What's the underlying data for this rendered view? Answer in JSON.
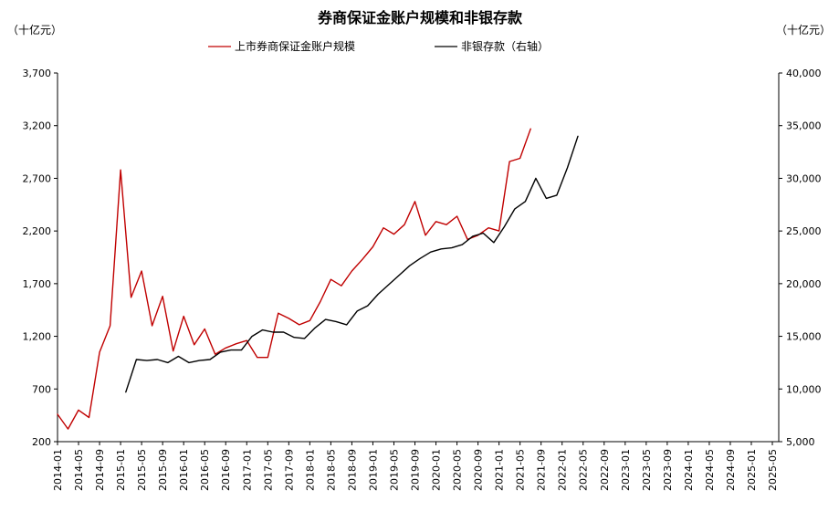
{
  "chart_data": {
    "type": "line",
    "title": "券商保证金账户规模和非银存款",
    "left_unit": "（十亿元）",
    "right_unit": "（十亿元）",
    "ylim_left": [
      200,
      3700
    ],
    "yticks_left": [
      "200",
      "700",
      "1,200",
      "1,700",
      "2,200",
      "2,700",
      "3,200",
      "3,700"
    ],
    "ylim_right": [
      5000,
      40000
    ],
    "yticks_right": [
      "5,000",
      "10,000",
      "15,000",
      "20,000",
      "25,000",
      "30,000",
      "35,000",
      "40,000"
    ],
    "x_labels": [
      "2014-01",
      "2014-05",
      "2014-09",
      "2015-01",
      "2015-05",
      "2015-09",
      "2016-01",
      "2016-05",
      "2016-09",
      "2017-01",
      "2017-05",
      "2017-09",
      "2018-01",
      "2018-05",
      "2018-09",
      "2019-01",
      "2019-05",
      "2019-09",
      "2020-01",
      "2020-05",
      "2020-09",
      "2021-01",
      "2021-05",
      "2021-09",
      "2022-01",
      "2022-05",
      "2022-09",
      "2023-01",
      "2023-05",
      "2023-09",
      "2024-01",
      "2024-05",
      "2024-09",
      "2025-01",
      "2025-05"
    ],
    "grid": false,
    "legend_position": "top-center",
    "series": [
      {
        "name": "上市券商保证金账户规模",
        "axis": "left",
        "color": "#c00000",
        "points": [
          {
            "x": "2014-01",
            "y": 460
          },
          {
            "x": "2014-03",
            "y": 320
          },
          {
            "x": "2014-05",
            "y": 500
          },
          {
            "x": "2014-07",
            "y": 430
          },
          {
            "x": "2014-09",
            "y": 1050
          },
          {
            "x": "2014-11",
            "y": 1300
          },
          {
            "x": "2015-01",
            "y": 2780
          },
          {
            "x": "2015-03",
            "y": 1570
          },
          {
            "x": "2015-05",
            "y": 1820
          },
          {
            "x": "2015-07",
            "y": 1300
          },
          {
            "x": "2015-09",
            "y": 1580
          },
          {
            "x": "2015-11",
            "y": 1060
          },
          {
            "x": "2016-01",
            "y": 1390
          },
          {
            "x": "2016-03",
            "y": 1120
          },
          {
            "x": "2016-05",
            "y": 1270
          },
          {
            "x": "2016-07",
            "y": 1030
          },
          {
            "x": "2016-09",
            "y": 1090
          },
          {
            "x": "2016-11",
            "y": 1130
          },
          {
            "x": "2017-01",
            "y": 1160
          },
          {
            "x": "2017-03",
            "y": 1000
          },
          {
            "x": "2017-05",
            "y": 1000
          },
          {
            "x": "2017-07",
            "y": 1420
          },
          {
            "x": "2017-09",
            "y": 1370
          },
          {
            "x": "2017-11",
            "y": 1310
          },
          {
            "x": "2018-01",
            "y": 1350
          },
          {
            "x": "2018-03",
            "y": 1530
          },
          {
            "x": "2018-05",
            "y": 1740
          },
          {
            "x": "2018-07",
            "y": 1680
          },
          {
            "x": "2018-09",
            "y": 1820
          },
          {
            "x": "2018-11",
            "y": 1930
          },
          {
            "x": "2019-01",
            "y": 2050
          },
          {
            "x": "2019-03",
            "y": 2230
          },
          {
            "x": "2019-05",
            "y": 2170
          },
          {
            "x": "2019-07",
            "y": 2260
          },
          {
            "x": "2019-09",
            "y": 2480
          },
          {
            "x": "2019-11",
            "y": 2160
          },
          {
            "x": "2020-01",
            "y": 2290
          },
          {
            "x": "2020-03",
            "y": 2260
          },
          {
            "x": "2020-05",
            "y": 2340
          },
          {
            "x": "2020-07",
            "y": 2120
          },
          {
            "x": "2020-09",
            "y": 2160
          },
          {
            "x": "2020-11",
            "y": 2230
          },
          {
            "x": "2021-01",
            "y": 2200
          },
          {
            "x": "2021-03",
            "y": 2860
          },
          {
            "x": "2021-05",
            "y": 2890
          },
          {
            "x": "2021-07",
            "y": 3170
          }
        ]
      },
      {
        "name": "非银存款（右轴）",
        "axis": "right",
        "color": "#000000",
        "points": [
          {
            "x": "2015-02",
            "y": 9700
          },
          {
            "x": "2015-04",
            "y": 12800
          },
          {
            "x": "2015-06",
            "y": 12700
          },
          {
            "x": "2015-08",
            "y": 12800
          },
          {
            "x": "2015-10",
            "y": 12500
          },
          {
            "x": "2015-12",
            "y": 13100
          },
          {
            "x": "2016-02",
            "y": 12500
          },
          {
            "x": "2016-04",
            "y": 12700
          },
          {
            "x": "2016-06",
            "y": 12800
          },
          {
            "x": "2016-08",
            "y": 13500
          },
          {
            "x": "2016-10",
            "y": 13700
          },
          {
            "x": "2016-12",
            "y": 13700
          },
          {
            "x": "2017-02",
            "y": 15000
          },
          {
            "x": "2017-04",
            "y": 15600
          },
          {
            "x": "2017-06",
            "y": 15400
          },
          {
            "x": "2017-08",
            "y": 15400
          },
          {
            "x": "2017-10",
            "y": 14900
          },
          {
            "x": "2017-12",
            "y": 14800
          },
          {
            "x": "2018-02",
            "y": 15800
          },
          {
            "x": "2018-04",
            "y": 16600
          },
          {
            "x": "2018-06",
            "y": 16400
          },
          {
            "x": "2018-08",
            "y": 16100
          },
          {
            "x": "2018-10",
            "y": 17400
          },
          {
            "x": "2018-12",
            "y": 17900
          },
          {
            "x": "2019-02",
            "y": 19000
          },
          {
            "x": "2019-04",
            "y": 19900
          },
          {
            "x": "2019-06",
            "y": 20800
          },
          {
            "x": "2019-08",
            "y": 21700
          },
          {
            "x": "2019-10",
            "y": 22400
          },
          {
            "x": "2019-12",
            "y": 23000
          },
          {
            "x": "2020-02",
            "y": 23300
          },
          {
            "x": "2020-04",
            "y": 23400
          },
          {
            "x": "2020-06",
            "y": 23700
          },
          {
            "x": "2020-08",
            "y": 24500
          },
          {
            "x": "2020-10",
            "y": 24800
          },
          {
            "x": "2020-12",
            "y": 23900
          },
          {
            "x": "2021-02",
            "y": 25400
          },
          {
            "x": "2021-04",
            "y": 27100
          },
          {
            "x": "2021-06",
            "y": 27800
          },
          {
            "x": "2021-08",
            "y": 30000
          },
          {
            "x": "2021-10",
            "y": 28100
          },
          {
            "x": "2021-12",
            "y": 28400
          },
          {
            "x": "2022-02",
            "y": 31000
          },
          {
            "x": "2022-04",
            "y": 34000
          }
        ]
      }
    ]
  }
}
